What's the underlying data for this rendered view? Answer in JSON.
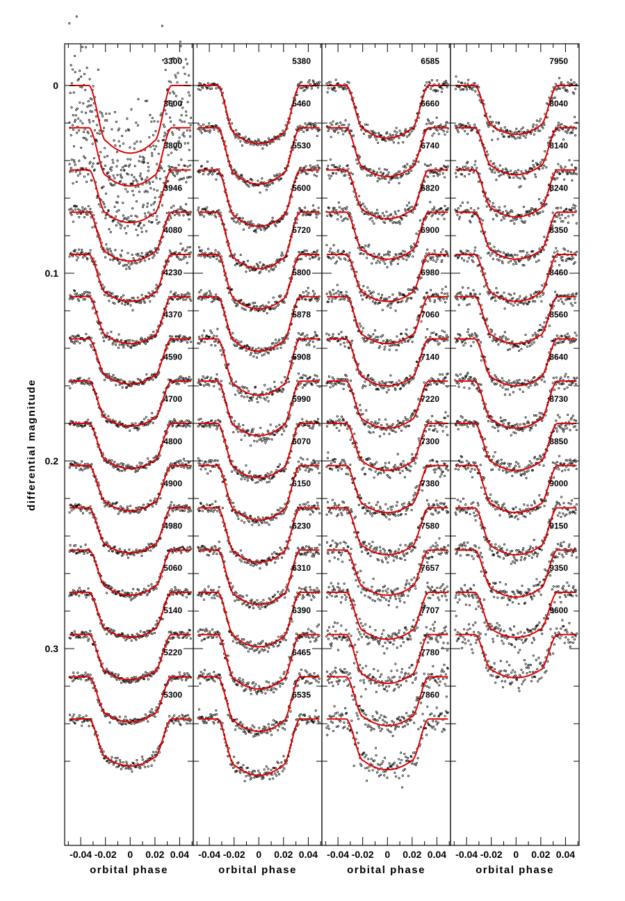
{
  "chart_data": {
    "type": "scatter",
    "title": "",
    "xlabel": "orbital phase",
    "ylabel": "differential magnitude",
    "xlim": [
      -0.053,
      0.051
    ],
    "ylim": [
      0.392,
      -0.018
    ],
    "x_ticks": [
      -0.04,
      -0.02,
      0,
      0.02,
      0.04
    ],
    "x_tick_labels": [
      "-0.04",
      "-0.02",
      "0",
      "0.02",
      "0.04"
    ],
    "y_ticks": [
      0,
      0.1,
      0.2,
      0.3
    ],
    "y_tick_labels": [
      "0",
      "0.1",
      "0.2",
      "0.3"
    ],
    "series_offset_step": 0.0225,
    "transit": {
      "ingress_start": -0.0335,
      "ingress_end": -0.0195,
      "egress_start": 0.0195,
      "egress_end": 0.0335
    },
    "panels": [
      {
        "wavelengths": [
          "3300",
          "3600",
          "3800",
          "3946",
          "4080",
          "4230",
          "4370",
          "4590",
          "4700",
          "4800",
          "4900",
          "4980",
          "5060",
          "5140",
          "5220",
          "5300"
        ],
        "depths": [
          0.036,
          0.031,
          0.028,
          0.026,
          0.025,
          0.025,
          0.024,
          0.024,
          0.024,
          0.024,
          0.024,
          0.024,
          0.024,
          0.024,
          0.024,
          0.025
        ],
        "noise": [
          0.012,
          0.007,
          0.004,
          0.002,
          0.0015,
          0.0013,
          0.0012,
          0.0011,
          0.0011,
          0.0011,
          0.0011,
          0.0011,
          0.0011,
          0.0012,
          0.0012,
          0.0013
        ]
      },
      {
        "wavelengths": [
          "5380",
          "5460",
          "5530",
          "5600",
          "5720",
          "5800",
          "5878",
          "5908",
          "5990",
          "6070",
          "6150",
          "6230",
          "6310",
          "6390",
          "6465",
          "6535"
        ],
        "depths": [
          0.031,
          0.03,
          0.03,
          0.03,
          0.029,
          0.029,
          0.03,
          0.029,
          0.029,
          0.029,
          0.029,
          0.029,
          0.029,
          0.029,
          0.029,
          0.03
        ],
        "noise": [
          0.0013,
          0.0014,
          0.0014,
          0.0014,
          0.0015,
          0.0015,
          0.002,
          0.002,
          0.0015,
          0.0015,
          0.0016,
          0.0016,
          0.0017,
          0.0017,
          0.0017,
          0.0018
        ]
      },
      {
        "wavelengths": [
          "6585",
          "6660",
          "6740",
          "6820",
          "6900",
          "6980",
          "7060",
          "7140",
          "7220",
          "7300",
          "7380",
          "7580",
          "7657",
          "7707",
          "7780",
          "7860"
        ],
        "depths": [
          0.028,
          0.026,
          0.026,
          0.025,
          0.025,
          0.025,
          0.025,
          0.025,
          0.025,
          0.025,
          0.025,
          0.024,
          0.025,
          0.026,
          0.026,
          0.027
        ],
        "noise": [
          0.0018,
          0.0018,
          0.0019,
          0.0019,
          0.002,
          0.002,
          0.002,
          0.0021,
          0.0022,
          0.0023,
          0.0024,
          0.0026,
          0.003,
          0.003,
          0.003,
          0.004
        ]
      },
      {
        "wavelengths": [
          "7950",
          "8040",
          "8140",
          "8240",
          "8350",
          "8460",
          "8560",
          "8640",
          "8730",
          "8850",
          "9000",
          "9150",
          "9350",
          "9600"
        ],
        "depths": [
          0.026,
          0.025,
          0.025,
          0.025,
          0.025,
          0.025,
          0.025,
          0.025,
          0.025,
          0.025,
          0.025,
          0.025,
          0.024,
          0.023
        ],
        "noise": [
          0.002,
          0.002,
          0.002,
          0.002,
          0.002,
          0.002,
          0.002,
          0.002,
          0.002,
          0.0022,
          0.0025,
          0.0025,
          0.003,
          0.004
        ]
      }
    ]
  }
}
